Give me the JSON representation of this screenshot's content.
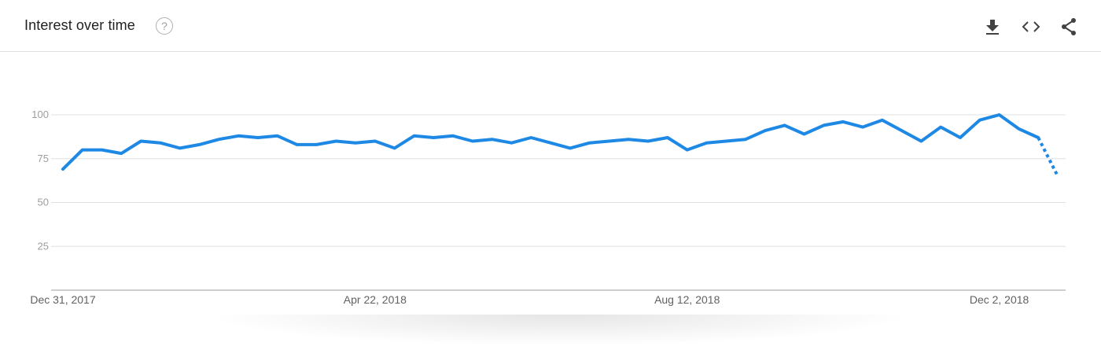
{
  "header": {
    "title": "Interest over time",
    "help_icon": "help-circle-icon",
    "tools": [
      {
        "name": "download-icon"
      },
      {
        "name": "embed-code-icon"
      },
      {
        "name": "share-icon"
      }
    ]
  },
  "colors": {
    "line": "#1e88e5",
    "grid": "#e0e0e0",
    "axis": "#9e9e9e"
  },
  "chart_data": {
    "type": "line",
    "title": "Interest over time",
    "ylim": [
      0,
      100
    ],
    "y_ticks": [
      "25",
      "50",
      "75",
      "100"
    ],
    "x_tick_labels": [
      "Dec 31, 2017",
      "Apr 22, 2018",
      "Aug 12, 2018",
      "Dec 2, 2018"
    ],
    "x_tick_index": [
      0,
      16,
      32,
      48
    ],
    "values": [
      69,
      80,
      80,
      78,
      85,
      84,
      81,
      83,
      86,
      88,
      87,
      88,
      83,
      83,
      85,
      84,
      85,
      81,
      88,
      87,
      88,
      85,
      86,
      84,
      87,
      84,
      81,
      84,
      85,
      86,
      85,
      87,
      80,
      84,
      85,
      86,
      91,
      94,
      89,
      94,
      96,
      93,
      97,
      91,
      85,
      93,
      87,
      97,
      100,
      92,
      87,
      65
    ],
    "partial_from_index": 50,
    "grid": true
  }
}
